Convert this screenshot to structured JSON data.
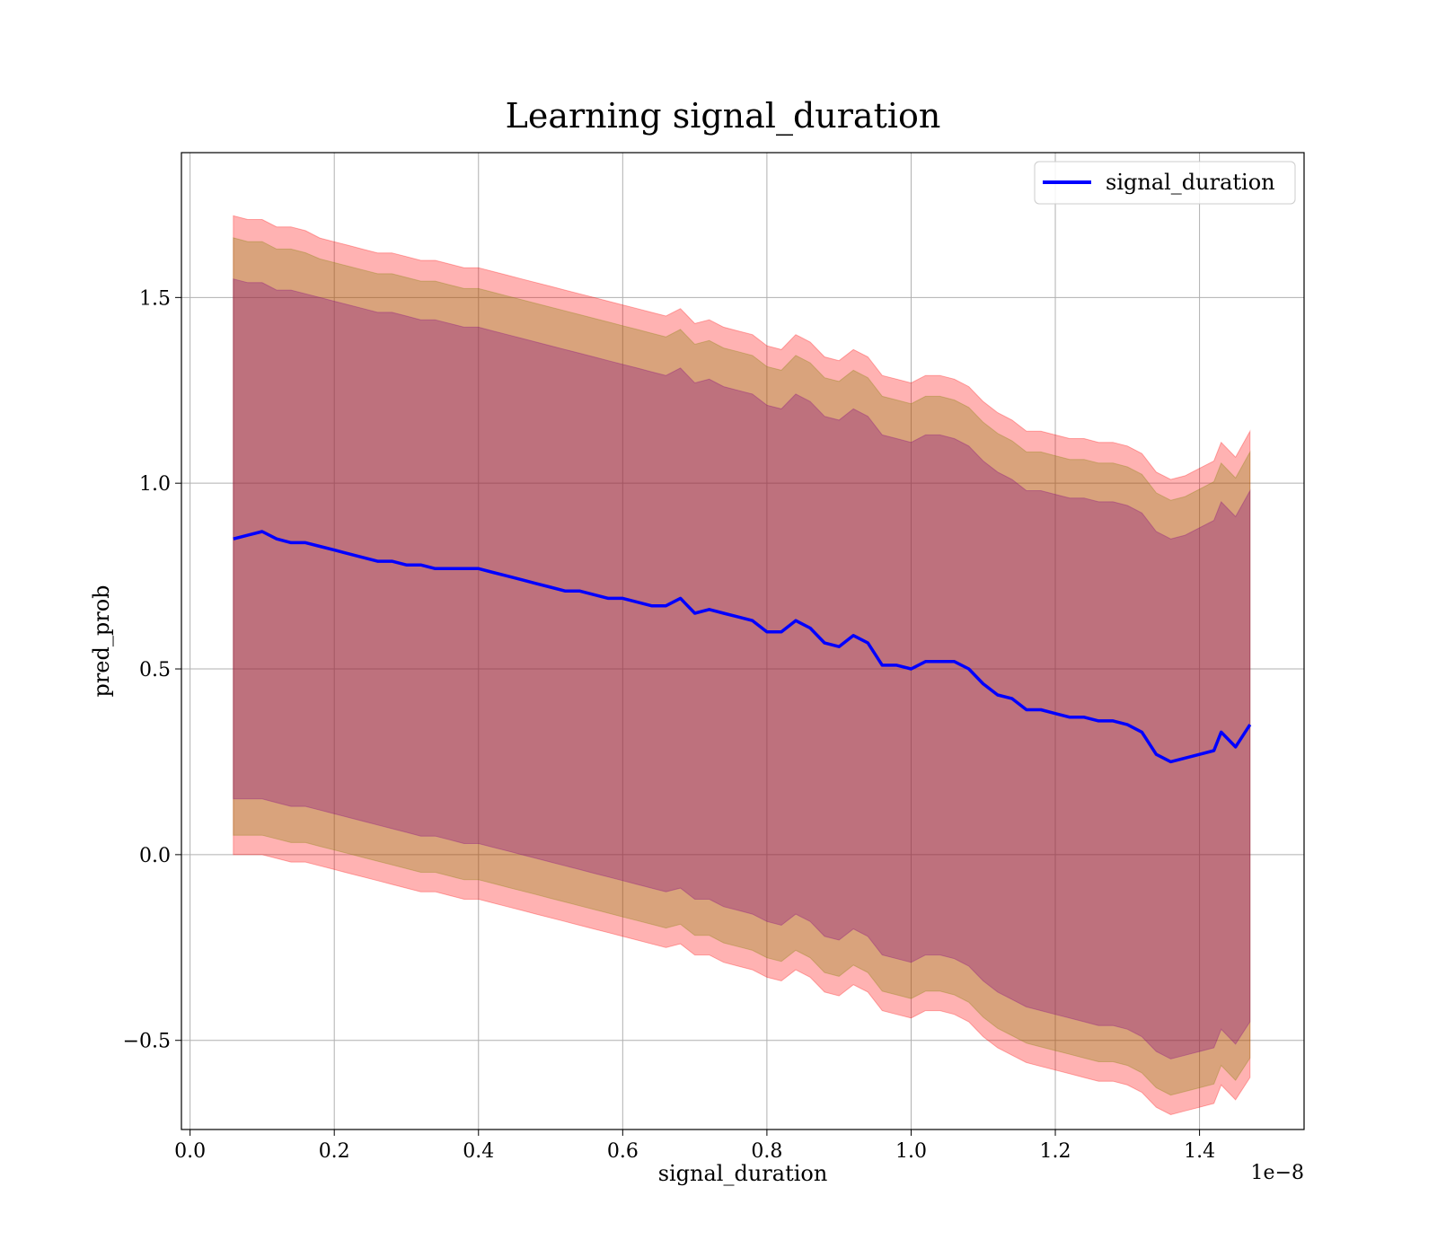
{
  "chart_data": {
    "type": "line",
    "title": "Learning signal_duration",
    "xlabel": "signal_duration",
    "ylabel": "pred_prob",
    "x_offset_label": "1e−8",
    "x_unit_multiplier": 1e-08,
    "xlim": [
      -0.012,
      1.545
    ],
    "ylim": [
      -0.74,
      1.89
    ],
    "x_ticks": [
      0.0,
      0.2,
      0.4,
      0.6,
      0.8,
      1.0,
      1.2,
      1.4
    ],
    "x_tick_labels": [
      "0.0",
      "0.2",
      "0.4",
      "0.6",
      "0.8",
      "1.0",
      "1.2",
      "1.4"
    ],
    "y_ticks": [
      -0.5,
      0.0,
      0.5,
      1.0,
      1.5
    ],
    "y_tick_labels": [
      "−0.5",
      "0.0",
      "0.5",
      "1.0",
      "1.5"
    ],
    "grid": true,
    "legend_position": "top-right",
    "colors": {
      "line": "#0000ff",
      "band": "#ff0000",
      "band_inner": "#800080",
      "band_mid": "#808000"
    },
    "series": [
      {
        "name": "signal_duration",
        "x": [
          0.06,
          0.08,
          0.1,
          0.12,
          0.14,
          0.16,
          0.18,
          0.2,
          0.22,
          0.24,
          0.26,
          0.28,
          0.3,
          0.32,
          0.34,
          0.36,
          0.38,
          0.4,
          0.42,
          0.44,
          0.46,
          0.48,
          0.5,
          0.52,
          0.54,
          0.56,
          0.58,
          0.6,
          0.62,
          0.64,
          0.66,
          0.68,
          0.7,
          0.72,
          0.74,
          0.76,
          0.78,
          0.8,
          0.82,
          0.84,
          0.86,
          0.88,
          0.9,
          0.92,
          0.94,
          0.96,
          0.98,
          1.0,
          1.02,
          1.04,
          1.06,
          1.08,
          1.1,
          1.12,
          1.14,
          1.16,
          1.18,
          1.2,
          1.22,
          1.24,
          1.26,
          1.28,
          1.3,
          1.32,
          1.34,
          1.36,
          1.38,
          1.4,
          1.42,
          1.43,
          1.45,
          1.47
        ],
        "values": [
          0.85,
          0.86,
          0.87,
          0.85,
          0.84,
          0.84,
          0.83,
          0.82,
          0.81,
          0.8,
          0.79,
          0.79,
          0.78,
          0.78,
          0.77,
          0.77,
          0.77,
          0.77,
          0.76,
          0.75,
          0.74,
          0.73,
          0.72,
          0.71,
          0.71,
          0.7,
          0.69,
          0.69,
          0.68,
          0.67,
          0.67,
          0.69,
          0.65,
          0.66,
          0.65,
          0.64,
          0.63,
          0.6,
          0.6,
          0.63,
          0.61,
          0.57,
          0.56,
          0.59,
          0.57,
          0.51,
          0.51,
          0.5,
          0.52,
          0.52,
          0.52,
          0.5,
          0.46,
          0.43,
          0.42,
          0.39,
          0.39,
          0.38,
          0.37,
          0.37,
          0.36,
          0.36,
          0.35,
          0.33,
          0.27,
          0.25,
          0.26,
          0.27,
          0.28,
          0.33,
          0.29,
          0.35
        ],
        "upper_outer": [
          1.72,
          1.71,
          1.71,
          1.69,
          1.69,
          1.68,
          1.66,
          1.65,
          1.64,
          1.63,
          1.62,
          1.62,
          1.61,
          1.6,
          1.6,
          1.59,
          1.58,
          1.58,
          1.57,
          1.56,
          1.55,
          1.54,
          1.53,
          1.52,
          1.51,
          1.5,
          1.49,
          1.48,
          1.47,
          1.46,
          1.45,
          1.47,
          1.43,
          1.44,
          1.42,
          1.41,
          1.4,
          1.37,
          1.36,
          1.4,
          1.38,
          1.34,
          1.33,
          1.36,
          1.34,
          1.29,
          1.28,
          1.27,
          1.29,
          1.29,
          1.28,
          1.26,
          1.22,
          1.19,
          1.17,
          1.14,
          1.14,
          1.13,
          1.12,
          1.12,
          1.11,
          1.11,
          1.1,
          1.08,
          1.03,
          1.01,
          1.02,
          1.04,
          1.06,
          1.11,
          1.07,
          1.14
        ],
        "lower_outer": [
          0.0,
          0.0,
          0.0,
          -0.01,
          -0.02,
          -0.02,
          -0.03,
          -0.04,
          -0.05,
          -0.06,
          -0.07,
          -0.08,
          -0.09,
          -0.1,
          -0.1,
          -0.11,
          -0.12,
          -0.12,
          -0.13,
          -0.14,
          -0.15,
          -0.16,
          -0.17,
          -0.18,
          -0.19,
          -0.2,
          -0.21,
          -0.22,
          -0.23,
          -0.24,
          -0.25,
          -0.24,
          -0.27,
          -0.27,
          -0.29,
          -0.3,
          -0.31,
          -0.33,
          -0.34,
          -0.31,
          -0.33,
          -0.37,
          -0.38,
          -0.35,
          -0.37,
          -0.42,
          -0.43,
          -0.44,
          -0.42,
          -0.42,
          -0.43,
          -0.45,
          -0.49,
          -0.52,
          -0.54,
          -0.56,
          -0.57,
          -0.58,
          -0.59,
          -0.6,
          -0.61,
          -0.61,
          -0.62,
          -0.64,
          -0.68,
          -0.7,
          -0.69,
          -0.68,
          -0.67,
          -0.62,
          -0.66,
          -0.6
        ],
        "upper_inner": [
          1.55,
          1.54,
          1.54,
          1.52,
          1.52,
          1.51,
          1.5,
          1.49,
          1.48,
          1.47,
          1.46,
          1.46,
          1.45,
          1.44,
          1.44,
          1.43,
          1.42,
          1.42,
          1.41,
          1.4,
          1.39,
          1.38,
          1.37,
          1.36,
          1.35,
          1.34,
          1.33,
          1.32,
          1.31,
          1.3,
          1.29,
          1.31,
          1.27,
          1.28,
          1.26,
          1.25,
          1.24,
          1.21,
          1.2,
          1.24,
          1.22,
          1.18,
          1.17,
          1.2,
          1.18,
          1.13,
          1.12,
          1.11,
          1.13,
          1.13,
          1.12,
          1.1,
          1.06,
          1.03,
          1.01,
          0.98,
          0.98,
          0.97,
          0.96,
          0.96,
          0.95,
          0.95,
          0.94,
          0.92,
          0.87,
          0.85,
          0.86,
          0.88,
          0.9,
          0.95,
          0.91,
          0.98
        ],
        "lower_inner": [
          0.15,
          0.15,
          0.15,
          0.14,
          0.13,
          0.13,
          0.12,
          0.11,
          0.1,
          0.09,
          0.08,
          0.07,
          0.06,
          0.05,
          0.05,
          0.04,
          0.03,
          0.03,
          0.02,
          0.01,
          0.0,
          -0.01,
          -0.02,
          -0.03,
          -0.04,
          -0.05,
          -0.06,
          -0.07,
          -0.08,
          -0.09,
          -0.1,
          -0.09,
          -0.12,
          -0.12,
          -0.14,
          -0.15,
          -0.16,
          -0.18,
          -0.19,
          -0.16,
          -0.18,
          -0.22,
          -0.23,
          -0.2,
          -0.22,
          -0.27,
          -0.28,
          -0.29,
          -0.27,
          -0.27,
          -0.28,
          -0.3,
          -0.34,
          -0.37,
          -0.39,
          -0.41,
          -0.42,
          -0.43,
          -0.44,
          -0.45,
          -0.46,
          -0.46,
          -0.47,
          -0.49,
          -0.53,
          -0.55,
          -0.54,
          -0.53,
          -0.52,
          -0.47,
          -0.51,
          -0.45
        ]
      }
    ]
  }
}
